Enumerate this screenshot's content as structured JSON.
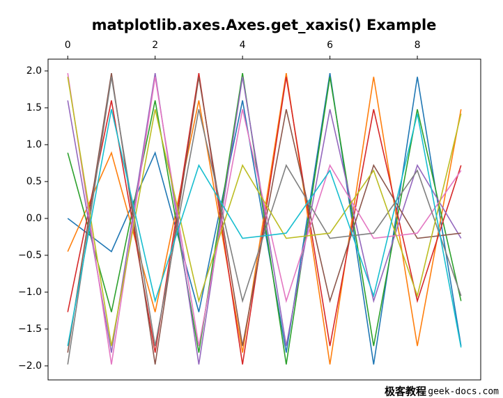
{
  "chart_data": {
    "type": "line",
    "title": "matplotlib.axes.Axes.get_xaxis() Example",
    "x": [
      0,
      1,
      2,
      3,
      4,
      5,
      6,
      7,
      8,
      9
    ],
    "series": [
      {
        "color": "#1f77b4",
        "values": [
          0,
          -0.45,
          0.89,
          -1.27,
          1.6,
          -1.82,
          1.97,
          -1.98,
          1.92,
          -1.73
        ]
      },
      {
        "color": "#ff7f0e",
        "values": [
          -0.45,
          0.89,
          -1.27,
          1.6,
          -1.82,
          1.97,
          -1.98,
          1.92,
          -1.73,
          1.48
        ]
      },
      {
        "color": "#2ca02c",
        "values": [
          0.89,
          -1.27,
          1.6,
          -1.82,
          1.97,
          -1.98,
          1.92,
          -1.73,
          1.48,
          -1.12
        ]
      },
      {
        "color": "#d62728",
        "values": [
          -1.27,
          1.6,
          -1.82,
          1.97,
          -1.98,
          1.92,
          -1.73,
          1.48,
          -1.12,
          0.72
        ]
      },
      {
        "color": "#9467bd",
        "values": [
          1.6,
          -1.82,
          1.97,
          -1.98,
          1.92,
          -1.73,
          1.48,
          -1.12,
          0.72,
          -0.27
        ]
      },
      {
        "color": "#8c564b",
        "values": [
          -1.82,
          1.97,
          -1.98,
          1.92,
          -1.73,
          1.48,
          -1.12,
          0.72,
          -0.27,
          -0.2
        ]
      },
      {
        "color": "#e377c2",
        "values": [
          1.97,
          -1.98,
          1.92,
          -1.73,
          1.48,
          -1.12,
          0.72,
          -0.27,
          -0.2,
          0.65
        ]
      },
      {
        "color": "#7f7f7f",
        "values": [
          -1.98,
          1.92,
          -1.73,
          1.48,
          -1.12,
          0.72,
          -0.27,
          -0.2,
          0.65,
          -1.05
        ]
      },
      {
        "color": "#bcbd22",
        "values": [
          1.92,
          -1.73,
          1.48,
          -1.12,
          0.72,
          -0.27,
          -0.2,
          0.65,
          -1.05,
          1.42
        ]
      },
      {
        "color": "#17becf",
        "values": [
          -1.73,
          1.48,
          -1.12,
          0.72,
          -0.27,
          -0.2,
          0.65,
          -1.05,
          1.42,
          -1.75
        ]
      }
    ],
    "xlim": [
      -0.45,
      9.45
    ],
    "xticks": [
      0,
      2,
      4,
      6,
      8
    ],
    "xaxis_position": "top",
    "ylim": [
      -2.19,
      2.16
    ],
    "yticks": [
      {
        "value": -2,
        "label": "−2.0"
      },
      {
        "value": -1.5,
        "label": "−1.5"
      },
      {
        "value": -1,
        "label": "−1.0"
      },
      {
        "value": -0.5,
        "label": "−0.5"
      },
      {
        "value": 0,
        "label": "0.0"
      },
      {
        "value": 0.5,
        "label": "0.5"
      },
      {
        "value": 1,
        "label": "1.0"
      },
      {
        "value": 1.5,
        "label": "1.5"
      },
      {
        "value": 2,
        "label": "2.0"
      }
    ],
    "grid": false
  },
  "watermark": {
    "brand": "极客教程",
    "site": "geek-docs.com"
  }
}
